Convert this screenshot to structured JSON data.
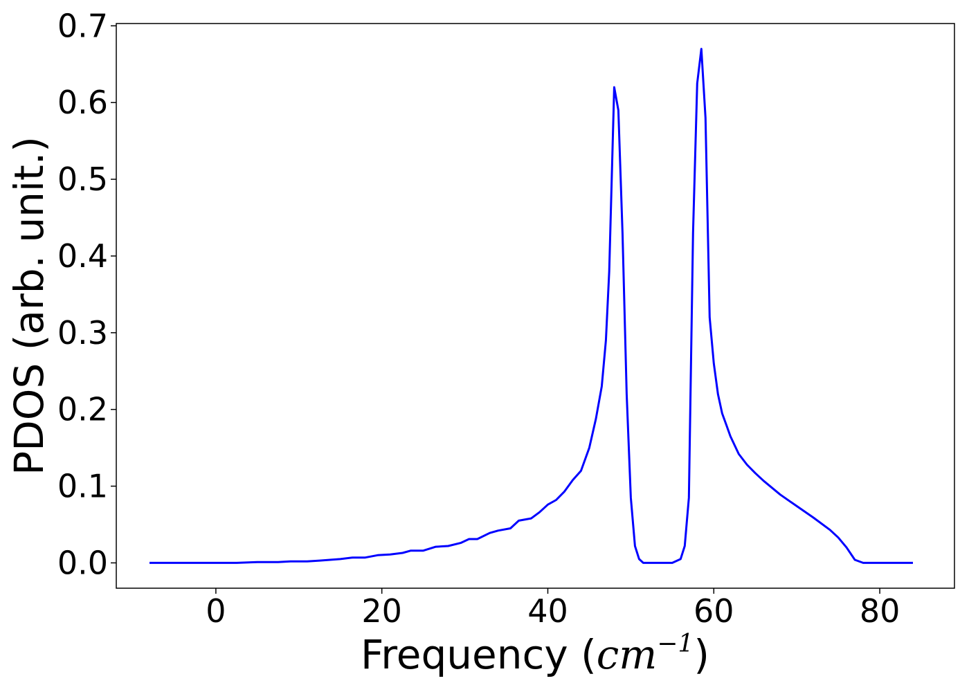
{
  "chart_data": {
    "type": "line",
    "xlabel": "Frequency (",
    "xlabel_math": "cm",
    "xlabel_superscript": "−1",
    "xlabel_close": ")",
    "ylabel": "PDOS (arb. unit.)",
    "xlim": [
      -12,
      89
    ],
    "ylim": [
      -0.033,
      0.703
    ],
    "xticks": [
      0,
      20,
      40,
      60,
      80
    ],
    "xtick_labels": [
      "0",
      "20",
      "40",
      "60",
      "80"
    ],
    "yticks": [
      0.0,
      0.1,
      0.2,
      0.3,
      0.4,
      0.5,
      0.6,
      0.7
    ],
    "ytick_labels": [
      "0.0",
      "0.1",
      "0.2",
      "0.3",
      "0.4",
      "0.5",
      "0.6",
      "0.7"
    ],
    "grid": false,
    "line_color": "#0000ff",
    "series": [
      {
        "x": [
          -8,
          -4,
          0,
          2.5,
          5,
          7.5,
          9,
          10,
          11,
          12.5,
          15,
          16.5,
          18,
          19.5,
          21,
          22.5,
          23.5,
          25,
          26.5,
          28,
          29.5,
          30.5,
          31.5,
          33,
          34,
          35.5,
          36.5,
          38,
          39,
          40,
          41,
          42,
          43,
          44,
          45,
          45.8,
          46.5,
          47,
          47.4,
          48,
          48.5,
          49,
          49.5,
          50,
          50.5,
          51,
          51.5,
          53,
          55,
          56,
          56.5,
          57,
          57.5,
          58,
          58.5,
          59,
          59.5,
          60,
          60.5,
          61,
          61.5,
          62,
          63,
          64,
          65,
          66,
          68,
          70,
          72,
          74,
          75,
          76,
          77,
          78,
          80,
          84
        ],
        "y": [
          0,
          0,
          0,
          0,
          0.001,
          0.001,
          0.002,
          0.002,
          0.002,
          0.003,
          0.005,
          0.007,
          0.007,
          0.01,
          0.011,
          0.013,
          0.016,
          0.016,
          0.021,
          0.022,
          0.026,
          0.031,
          0.031,
          0.039,
          0.042,
          0.045,
          0.055,
          0.058,
          0.066,
          0.076,
          0.082,
          0.093,
          0.108,
          0.12,
          0.15,
          0.188,
          0.23,
          0.29,
          0.38,
          0.62,
          0.59,
          0.43,
          0.22,
          0.085,
          0.022,
          0.005,
          0,
          0,
          0,
          0.005,
          0.022,
          0.085,
          0.43,
          0.625,
          0.67,
          0.58,
          0.32,
          0.26,
          0.22,
          0.195,
          0.18,
          0.165,
          0.142,
          0.128,
          0.117,
          0.107,
          0.089,
          0.074,
          0.059,
          0.043,
          0.033,
          0.02,
          0.004,
          0,
          0,
          0
        ]
      }
    ]
  }
}
